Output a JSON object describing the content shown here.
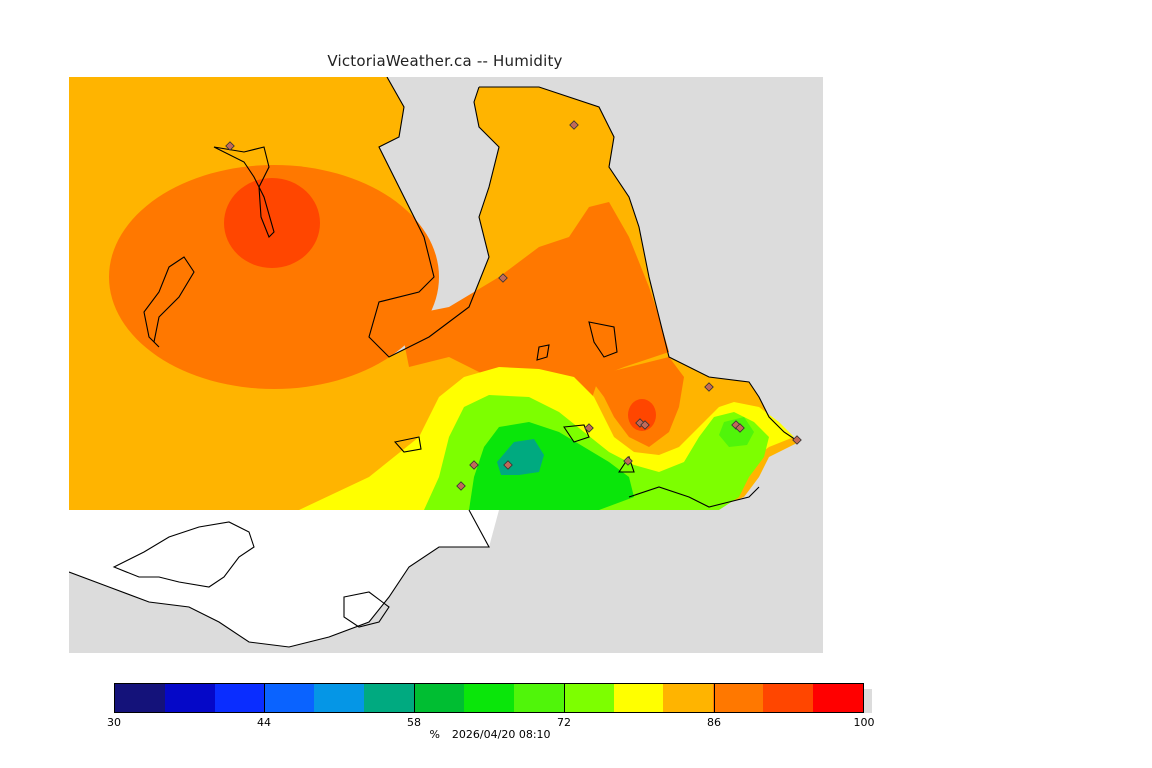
{
  "header": {
    "title": "VictoriaWeather.ca -- Humidity"
  },
  "legend": {
    "colors": [
      "#14127a",
      "#0508c8",
      "#0a2dff",
      "#0a63ff",
      "#0596e6",
      "#00aa80",
      "#00be32",
      "#0ae60a",
      "#50f50a",
      "#7dff00",
      "#ffff00",
      "#ffb400",
      "#ff7800",
      "#ff4600",
      "#ff0000"
    ],
    "tick_labels": [
      "30",
      "44",
      "58",
      "72",
      "86",
      "100"
    ],
    "unit": "%",
    "timestamp": "2026/04/20 08:10"
  },
  "map": {
    "land_color": "#dcdcdc",
    "background_color": "#ffffff",
    "station_count": 14
  }
}
